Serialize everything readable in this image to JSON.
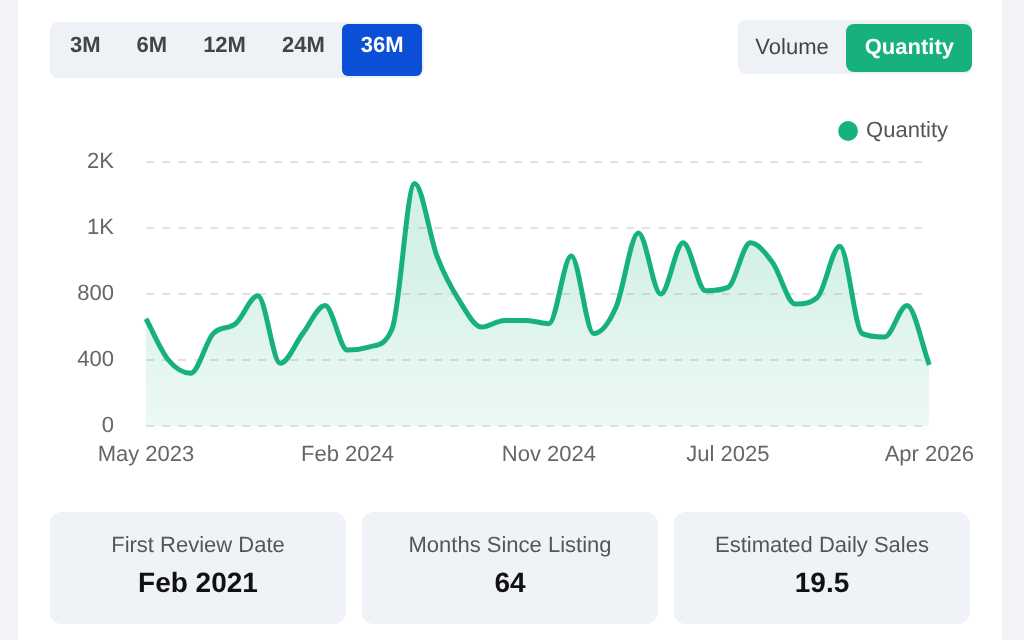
{
  "chart_data": {
    "type": "area",
    "categories": [
      "May 2023",
      null,
      null,
      null,
      null,
      null,
      null,
      null,
      null,
      "Feb 2024",
      null,
      null,
      null,
      null,
      null,
      null,
      null,
      null,
      "Nov 2024",
      null,
      null,
      null,
      null,
      null,
      null,
      null,
      "Jul 2025",
      null,
      null,
      null,
      null,
      null,
      null,
      null,
      null,
      "Apr 2026"
    ],
    "series": [
      {
        "name": "Quantity",
        "color": "#17b27b",
        "values": [
          650,
          400,
          320,
          560,
          620,
          790,
          380,
          560,
          730,
          460,
          480,
          590,
          1470,
          1030,
          760,
          600,
          640,
          640,
          620,
          1030,
          560,
          720,
          1170,
          800,
          1110,
          820,
          840,
          1110,
          990,
          740,
          780,
          1090,
          560,
          540,
          730,
          370
        ]
      }
    ],
    "ylim": [
      0,
      1600
    ],
    "yticks": [
      0,
      400,
      800,
      {
        "value": 1200,
        "label": "1K"
      },
      {
        "value": 1600,
        "label": "2K"
      }
    ],
    "grid": "y",
    "legend": "top right",
    "marker": "none",
    "line_style": "solid",
    "annotations": [
      "3M",
      "6M",
      "12M",
      "24M",
      "36M",
      "Volume",
      "Quantity",
      "First Review Date",
      "Feb 2021",
      "Months Since Listing",
      "64",
      "Estimated Daily Sales",
      "19.5"
    ]
  }
}
